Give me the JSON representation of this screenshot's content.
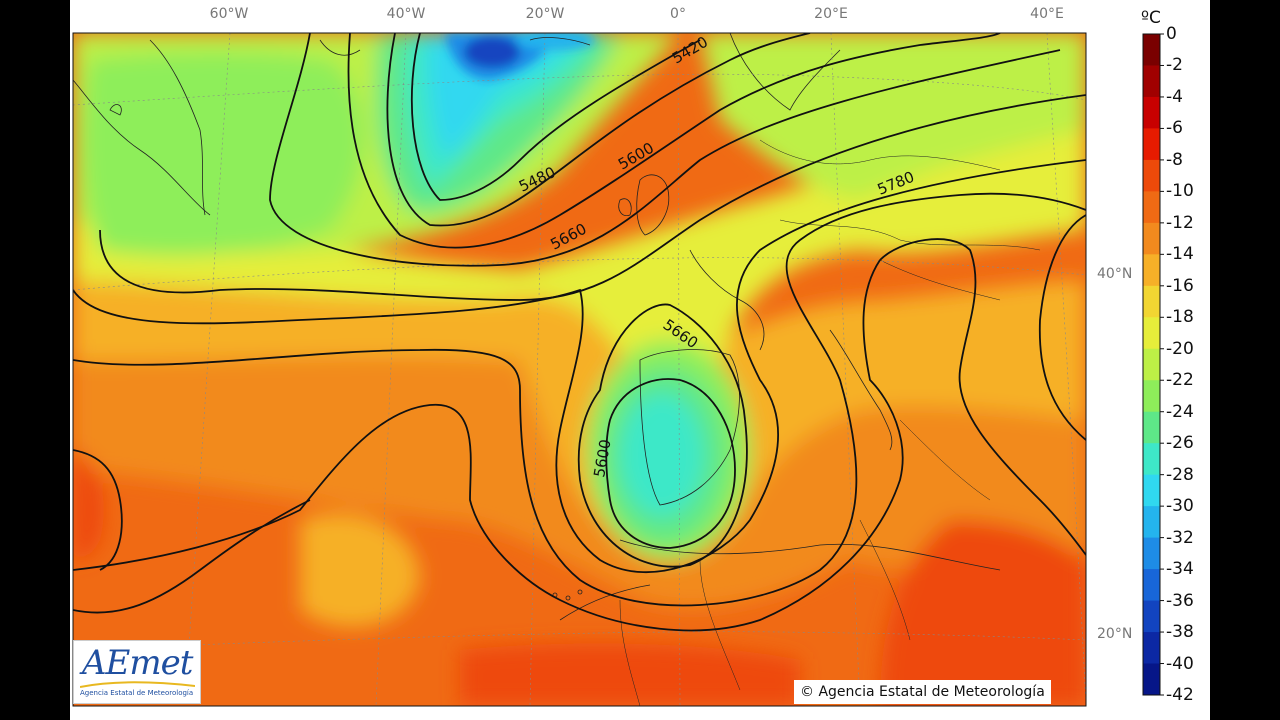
{
  "map": {
    "longitude_labels": [
      "60°W",
      "40°W",
      "20°W",
      "0°",
      "20°E",
      "40°E"
    ],
    "latitude_labels": [
      "40°N",
      "20°N"
    ],
    "contour_labels": [
      "5420",
      "5480",
      "5600",
      "5660",
      "5780",
      "5660",
      "5600"
    ]
  },
  "colorbar": {
    "unit": "ºC",
    "ticks": [
      "0",
      "-2",
      "-4",
      "-6",
      "-8",
      "-10",
      "-12",
      "-14",
      "-16",
      "-18",
      "-20",
      "-22",
      "-24",
      "-26",
      "-28",
      "-30",
      "-32",
      "-34",
      "-36",
      "-38",
      "-40",
      "-42"
    ],
    "colors": [
      "#7a0000",
      "#a00000",
      "#c80000",
      "#e61b00",
      "#ee4a0a",
      "#f06a14",
      "#f28a1e",
      "#f6b028",
      "#f2d632",
      "#e6ee3a",
      "#bdf046",
      "#8eee5a",
      "#5ee888",
      "#3ee8c8",
      "#30d8f0",
      "#24b4ee",
      "#1e8ce6",
      "#1866d8",
      "#1244c0",
      "#0c28a4",
      "#061688"
    ]
  },
  "logo": {
    "name": "AEmet",
    "subtitle": "Agencia Estatal de Meteorología"
  },
  "copyright": "© Agencia Estatal de Meteorología"
}
